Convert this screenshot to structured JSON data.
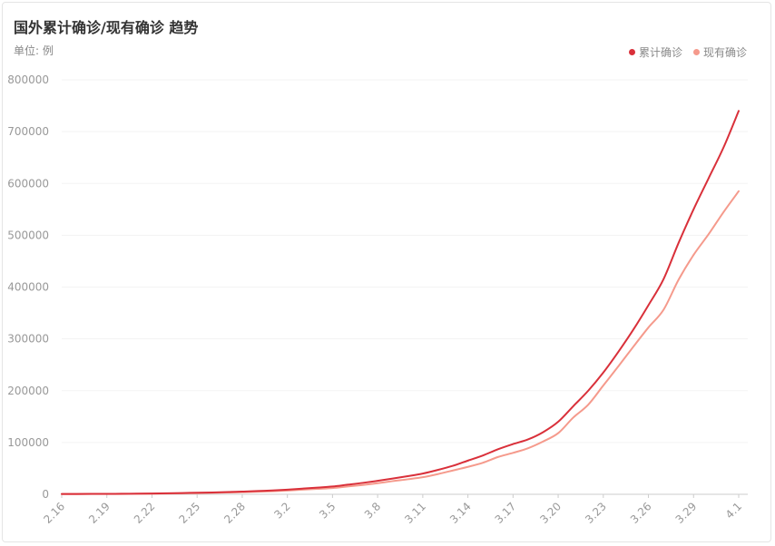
{
  "header": {
    "title": "国外累计确诊/现有确诊 趋势",
    "unit": "单位: 例"
  },
  "colors": {
    "series_cumulative": "#d9303a",
    "series_current": "#f59a8c",
    "grid": "#f3f3f3",
    "axis": "#cccccc"
  },
  "chart_data": {
    "type": "line",
    "title": "国外累计确诊/现有确诊 趋势",
    "ylabel": "单位: 例",
    "ylim": [
      0,
      800000
    ],
    "yticks": [
      0,
      100000,
      200000,
      300000,
      400000,
      500000,
      600000,
      700000,
      800000
    ],
    "x": [
      "2.16",
      "2.17",
      "2.18",
      "2.19",
      "2.20",
      "2.21",
      "2.22",
      "2.23",
      "2.24",
      "2.25",
      "2.26",
      "2.27",
      "2.28",
      "2.29",
      "3.1",
      "3.2",
      "3.3",
      "3.4",
      "3.5",
      "3.6",
      "3.7",
      "3.8",
      "3.9",
      "3.10",
      "3.11",
      "3.12",
      "3.13",
      "3.14",
      "3.15",
      "3.16",
      "3.17",
      "3.18",
      "3.19",
      "3.20",
      "3.21",
      "3.22",
      "3.23",
      "3.24",
      "3.25",
      "3.26",
      "3.27",
      "3.28",
      "3.29",
      "3.30",
      "3.31",
      "4.1"
    ],
    "xtick_labels": [
      "2.16",
      "2.19",
      "2.22",
      "2.25",
      "2.28",
      "3.2",
      "3.5",
      "3.8",
      "3.11",
      "3.14",
      "3.17",
      "3.20",
      "3.23",
      "3.26",
      "3.29",
      "4.1"
    ],
    "legend_position": "top-right",
    "grid": true,
    "series": [
      {
        "name": "累计确诊",
        "values": [
          700,
          750,
          800,
          900,
          1000,
          1200,
          1500,
          2000,
          2500,
          3000,
          3600,
          4300,
          5200,
          6300,
          7500,
          9000,
          11000,
          13000,
          15000,
          18500,
          22000,
          26000,
          30500,
          35000,
          40000,
          47000,
          55000,
          65000,
          75000,
          87000,
          97000,
          106000,
          120000,
          140000,
          170000,
          200000,
          235000,
          275000,
          318000,
          365000,
          415000,
          485000,
          550000,
          610000,
          670000,
          740000
        ]
      },
      {
        "name": "现有确诊",
        "values": [
          500,
          550,
          600,
          650,
          750,
          900,
          1100,
          1500,
          1900,
          2300,
          2800,
          3400,
          4100,
          5000,
          6000,
          7300,
          8900,
          10500,
          12000,
          15000,
          18000,
          21500,
          25500,
          29000,
          33000,
          39000,
          46000,
          53000,
          61000,
          72000,
          80000,
          89000,
          102000,
          118000,
          148000,
          173000,
          210000,
          247000,
          285000,
          322000,
          356000,
          414000,
          462000,
          502000,
          545000,
          585000
        ]
      }
    ]
  }
}
